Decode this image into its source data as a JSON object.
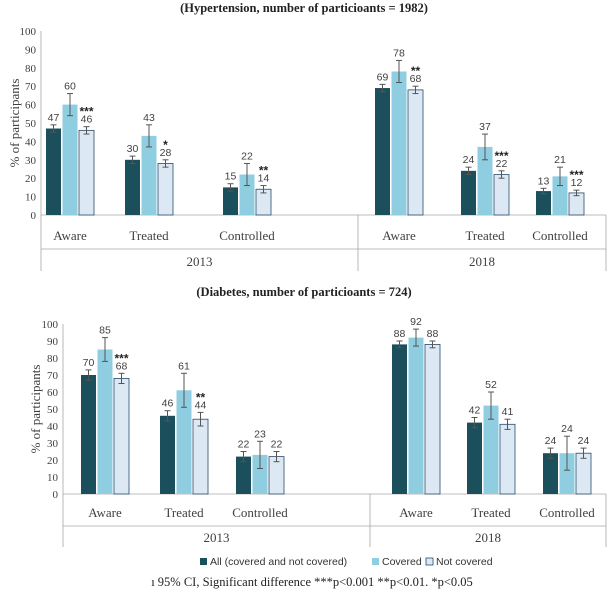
{
  "chart_data": [
    {
      "type": "bar",
      "title": "(Hypertension, number of particioants = 1982)",
      "ylabel": "% of participants",
      "ylim": [
        0,
        100
      ],
      "yticks": [
        "0",
        "10",
        "20",
        "30",
        "40",
        "50",
        "60",
        "70",
        "80",
        "90",
        "100"
      ],
      "groups": [
        "2013",
        "2018"
      ],
      "categories": [
        "Aware",
        "Treated",
        "Controlled"
      ],
      "series": [
        {
          "name": "All (covered and not covered)",
          "color": "#1c4f5c",
          "values": [
            [
              47,
              30,
              15
            ],
            [
              69,
              24,
              13
            ]
          ],
          "errors": [
            [
              2,
              2,
              2
            ],
            [
              2,
              2,
              1.5
            ]
          ]
        },
        {
          "name": "Covered",
          "color": "#8fcde0",
          "values": [
            [
              60,
              43,
              22
            ],
            [
              78,
              37,
              21
            ]
          ],
          "errors": [
            [
              6,
              6,
              6
            ],
            [
              6,
              7,
              5
            ]
          ]
        },
        {
          "name": "Not covered",
          "color": "#dce9f5",
          "values": [
            [
              46,
              28,
              14
            ],
            [
              68,
              22,
              12
            ]
          ],
          "errors": [
            [
              2,
              2,
              2
            ],
            [
              2,
              2,
              1.5
            ]
          ]
        }
      ],
      "significance": [
        [
          "***",
          "*",
          "**"
        ],
        [
          "**",
          "***",
          "***"
        ]
      ]
    },
    {
      "type": "bar",
      "title": "(Diabetes, number of particioants = 724)",
      "ylabel": "% of participants",
      "ylim": [
        0,
        100
      ],
      "yticks": [
        "0",
        "10",
        "20",
        "30",
        "40",
        "50",
        "60",
        "70",
        "80",
        "90",
        "100"
      ],
      "groups": [
        "2013",
        "2018"
      ],
      "categories": [
        "Aware",
        "Treated",
        "Controlled"
      ],
      "series": [
        {
          "name": "All (covered and not covered)",
          "color": "#1c4f5c",
          "values": [
            [
              70,
              46,
              22
            ],
            [
              88,
              42,
              24
            ]
          ],
          "errors": [
            [
              3,
              3,
              3
            ],
            [
              2,
              3,
              3
            ]
          ]
        },
        {
          "name": "Covered",
          "color": "#8fcde0",
          "values": [
            [
              85,
              61,
              23
            ],
            [
              92,
              52,
              24
            ]
          ],
          "errors": [
            [
              7,
              10,
              8
            ],
            [
              5,
              8,
              10
            ]
          ]
        },
        {
          "name": "Not covered",
          "color": "#dce9f5",
          "values": [
            [
              68,
              44,
              22
            ],
            [
              88,
              41,
              24
            ]
          ],
          "errors": [
            [
              3,
              4,
              3
            ],
            [
              2,
              3,
              3
            ]
          ]
        }
      ],
      "significance": [
        [
          "***",
          "**",
          ""
        ],
        [
          "",
          "",
          ""
        ]
      ]
    }
  ],
  "legend": {
    "items": [
      "All (covered and not covered)",
      "Covered",
      "Not covered"
    ]
  },
  "footnote": "ı 95% CI, Significant difference ***p<0.001 **p<0.01. *p<0.05"
}
